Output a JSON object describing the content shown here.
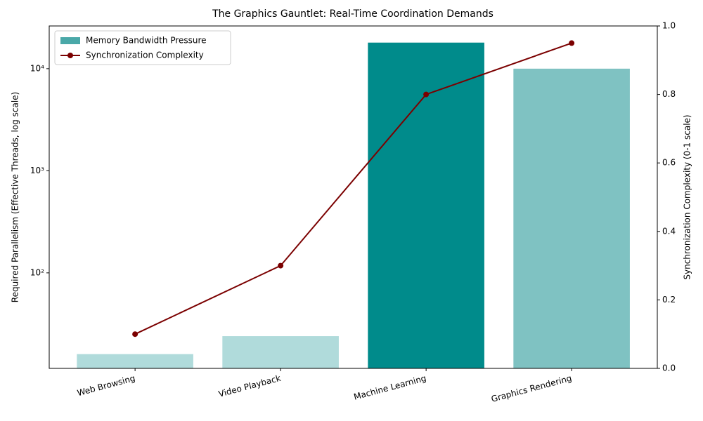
{
  "chart_data": {
    "type": "bar_line",
    "title": "The Graphics Gauntlet: Real-Time Coordination Demands",
    "ylabel": "Required Parallelism (Effective Threads, log scale)",
    "y2label": "Synchronization Complexity (0-1 scale)",
    "categories": [
      "Web Browsing",
      "Video Playback",
      "Machine Learning",
      "Graphics Rendering"
    ],
    "log_y": true,
    "ylim": [
      11.6,
      26200
    ],
    "yticks": [
      {
        "value": 100,
        "label": "10²"
      },
      {
        "value": 1000,
        "label": "10³"
      },
      {
        "value": 10000,
        "label": "10⁴"
      }
    ],
    "y2lim": [
      0,
      1
    ],
    "y2ticks": [
      {
        "value": 0,
        "label": "0.0"
      },
      0.2,
      0.4,
      0.6,
      0.8,
      {
        "value": 1,
        "label": "1.0"
      }
    ],
    "legend": "upper left",
    "series": [
      {
        "name": "Memory Bandwidth Pressure",
        "type": "bar",
        "color": "#4aa8a8",
        "colors": [
          "#b0dbdb",
          "#b0dbdb",
          "#008b8b",
          "#7fc2c2"
        ],
        "values": [
          16,
          24,
          18000,
          10000
        ]
      },
      {
        "name": "Synchronization Complexity",
        "type": "line",
        "axis": "y2",
        "color": "#7b0000",
        "values": [
          0.1,
          0.3,
          0.8,
          0.95
        ]
      }
    ]
  }
}
